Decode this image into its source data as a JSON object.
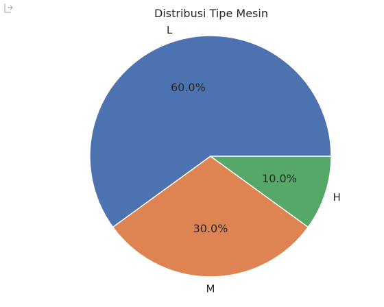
{
  "cell_output": {
    "icon": "output-arrow-icon"
  },
  "chart_data": {
    "type": "pie",
    "title": "Distribusi Tipe Mesin",
    "slices": [
      {
        "label": "L",
        "value": 60.0,
        "pct_label": "60.0%",
        "color": "#4c72b0"
      },
      {
        "label": "M",
        "value": 30.0,
        "pct_label": "30.0%",
        "color": "#dd8452"
      },
      {
        "label": "H",
        "value": 10.0,
        "pct_label": "10.0%",
        "color": "#55a868"
      }
    ],
    "start_angle_deg": 0,
    "direction": "counterclockwise",
    "edge_color": "#ffffff"
  }
}
